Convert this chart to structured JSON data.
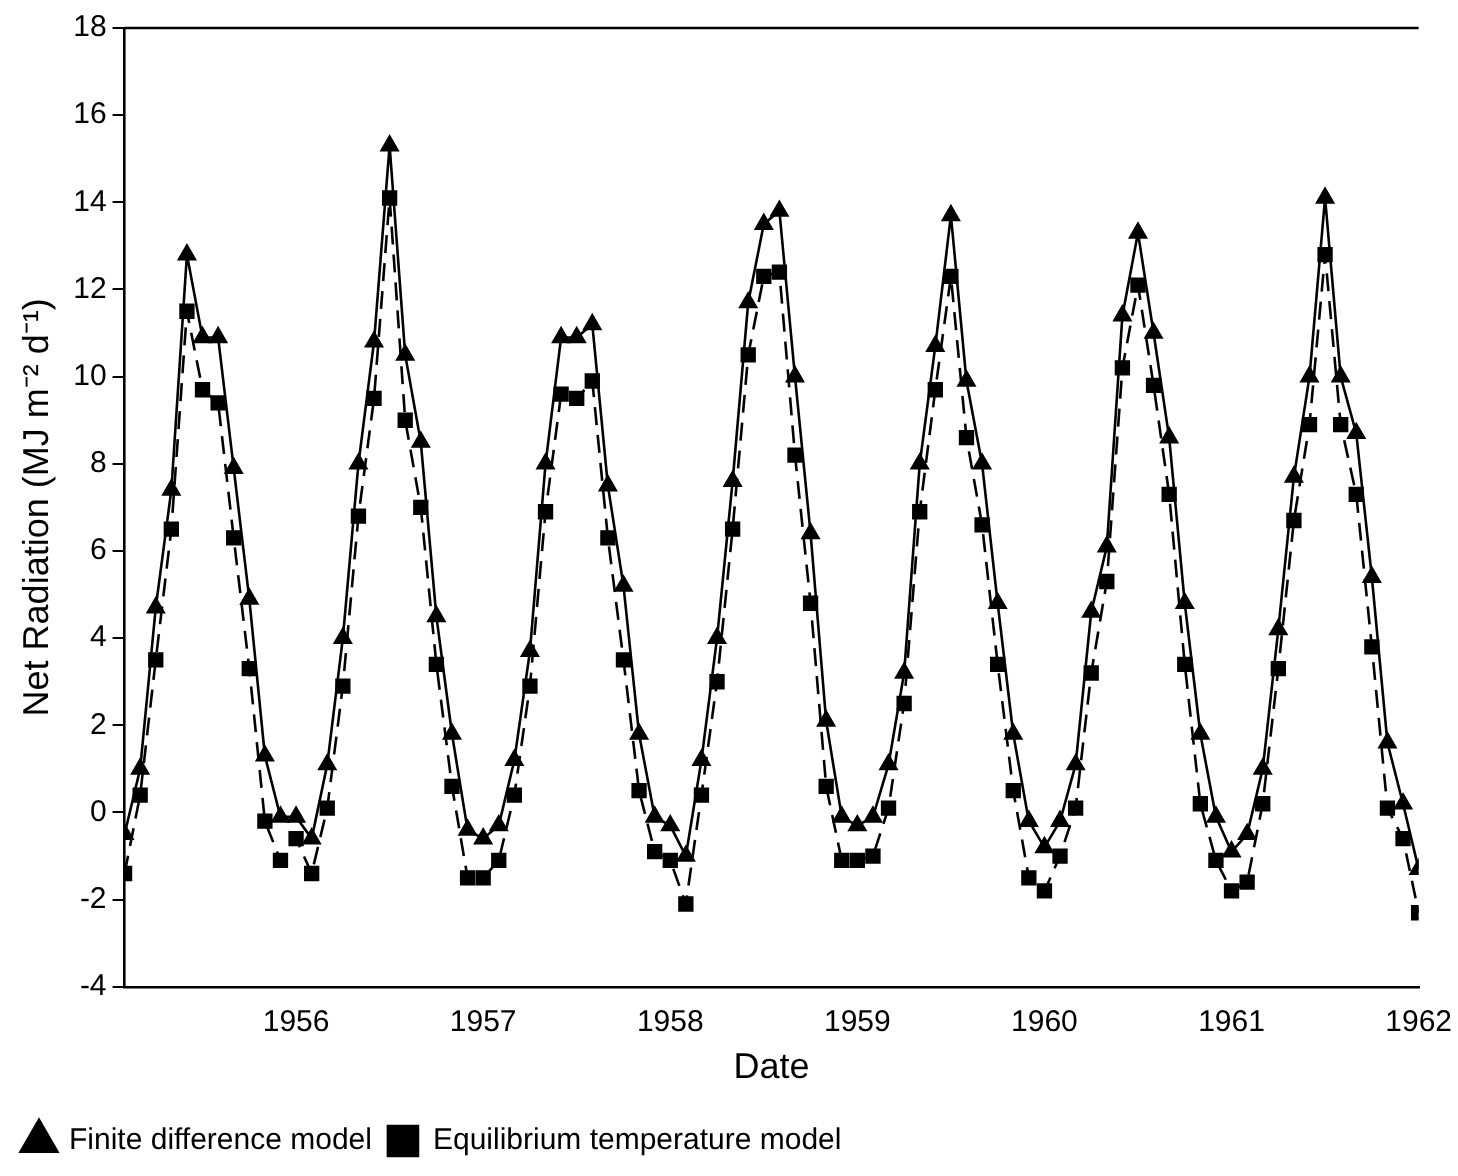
{
  "chart_data": {
    "type": "line",
    "xlabel": "Date",
    "ylabel": "Net Radiation (MJ m⁻² d⁻¹)",
    "x": [
      "1955-08",
      "1955-09",
      "1955-10",
      "1955-11",
      "1955-12",
      "1956-01",
      "1956-02",
      "1956-03",
      "1956-04",
      "1956-05",
      "1956-06",
      "1956-07",
      "1956-08",
      "1956-09",
      "1956-10",
      "1956-11",
      "1956-12",
      "1957-01",
      "1957-02",
      "1957-03",
      "1957-04",
      "1957-05",
      "1957-06",
      "1957-07",
      "1957-08",
      "1957-09",
      "1957-10",
      "1957-11",
      "1957-12",
      "1958-01",
      "1958-02",
      "1958-03",
      "1958-04",
      "1958-05",
      "1958-06",
      "1958-07",
      "1958-08",
      "1958-09",
      "1958-10",
      "1958-11",
      "1958-12",
      "1959-01",
      "1959-02",
      "1959-03",
      "1959-04",
      "1959-05",
      "1959-06",
      "1959-07",
      "1959-08",
      "1959-09",
      "1959-10",
      "1959-11",
      "1959-12",
      "1960-01",
      "1960-02",
      "1960-03",
      "1960-04",
      "1960-05",
      "1960-06",
      "1960-07",
      "1960-08",
      "1960-09",
      "1960-10",
      "1960-11",
      "1960-12",
      "1961-01",
      "1961-02",
      "1961-03",
      "1961-04",
      "1961-05",
      "1961-06",
      "1961-07",
      "1961-08",
      "1961-09",
      "1961-10",
      "1961-11",
      "1961-12",
      "1962-01",
      "1962-02",
      "1962-03",
      "1962-04",
      "1962-05",
      "1962-06",
      "1962-07"
    ],
    "series": [
      {
        "name": "Finite difference model",
        "color": "#000000",
        "marker": "triangle",
        "line_style": "solid",
        "values": [
          -0.5,
          1.0,
          4.7,
          7.4,
          12.8,
          10.9,
          10.9,
          7.9,
          4.9,
          1.3,
          -0.1,
          -0.1,
          -0.6,
          1.1,
          4.0,
          8.0,
          10.8,
          15.3,
          10.5,
          8.5,
          4.5,
          1.8,
          -0.4,
          -0.6,
          -0.3,
          1.2,
          3.7,
          8.0,
          10.9,
          10.9,
          11.2,
          7.5,
          5.2,
          1.8,
          -0.1,
          -0.3,
          -1.0,
          1.2,
          4.0,
          7.6,
          11.7,
          13.5,
          13.8,
          10.0,
          6.4,
          2.1,
          -0.1,
          -0.3,
          -0.1,
          1.1,
          3.2,
          8.0,
          10.7,
          13.7,
          9.9,
          8.0,
          4.8,
          1.8,
          -0.2,
          -0.8,
          -0.2,
          1.1,
          4.6,
          6.1,
          11.4,
          13.3,
          11.0,
          8.6,
          4.8,
          1.8,
          -0.1,
          -0.9,
          -0.5,
          1.0,
          4.2,
          7.7,
          10.0,
          14.1,
          10.0,
          8.7,
          5.4,
          1.6,
          0.2,
          -1.3
        ]
      },
      {
        "name": "Equilibrium temperature model",
        "color": "#000000",
        "marker": "square",
        "line_style": "dashed",
        "values": [
          -1.4,
          0.4,
          3.5,
          6.5,
          11.5,
          9.7,
          9.4,
          6.3,
          3.3,
          -0.2,
          -1.1,
          -0.6,
          -1.4,
          0.1,
          2.9,
          6.8,
          9.5,
          14.1,
          9.0,
          7.0,
          3.4,
          0.6,
          -1.5,
          -1.5,
          -1.1,
          0.4,
          2.9,
          6.9,
          9.6,
          9.5,
          9.9,
          6.3,
          3.5,
          0.5,
          -0.9,
          -1.1,
          -2.1,
          0.4,
          3.0,
          6.5,
          10.5,
          12.3,
          12.4,
          8.2,
          4.8,
          0.6,
          -1.1,
          -1.1,
          -1.0,
          0.1,
          2.5,
          6.9,
          9.7,
          12.3,
          8.6,
          6.6,
          3.4,
          0.5,
          -1.5,
          -1.8,
          -1.0,
          0.1,
          3.2,
          5.3,
          10.2,
          12.1,
          9.8,
          7.3,
          3.4,
          0.2,
          -1.1,
          -1.8,
          -1.6,
          0.2,
          3.3,
          6.7,
          8.9,
          12.8,
          8.9,
          7.3,
          3.8,
          0.1,
          -0.6,
          -2.3
        ]
      }
    ],
    "xlim": [
      "1955-08",
      "1962-07"
    ],
    "xticks": [
      {
        "value": "1956-07",
        "label": "1956"
      },
      {
        "value": "1957-07",
        "label": "1957"
      },
      {
        "value": "1958-07",
        "label": "1958"
      },
      {
        "value": "1959-07",
        "label": "1959"
      },
      {
        "value": "1960-07",
        "label": "1960"
      },
      {
        "value": "1961-07",
        "label": "1961"
      },
      {
        "value": "1962-07",
        "label": "1962"
      }
    ],
    "ylim": [
      -4,
      18
    ],
    "yticks": [
      -4,
      -2,
      0,
      2,
      4,
      6,
      8,
      10,
      12,
      14,
      16,
      18
    ],
    "grid": false,
    "legend": "bottom"
  }
}
